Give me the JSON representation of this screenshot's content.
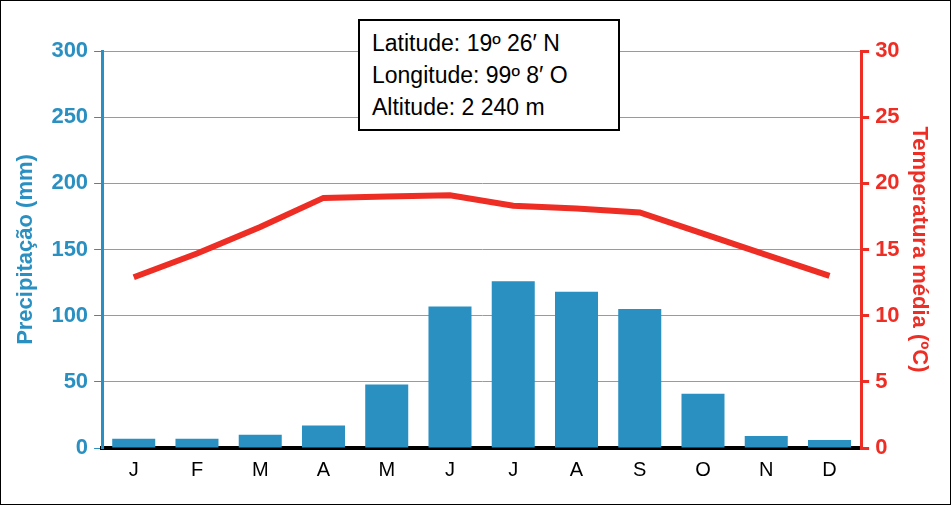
{
  "chart_data": {
    "type": "bar",
    "annotations": [
      "Latitude: 19º 26′ N",
      "Longitude: 99º 8′ O",
      "Altitude: 2 240 m"
    ],
    "categories": [
      "J",
      "F",
      "M",
      "A",
      "M",
      "J",
      "J",
      "A",
      "S",
      "O",
      "N",
      "D"
    ],
    "series": [
      {
        "type": "bar",
        "color": "#2a8fc1",
        "values": [
          7,
          7,
          10,
          17,
          48,
          107,
          126,
          118,
          105,
          41,
          9,
          6
        ]
      },
      {
        "type": "line",
        "color": "#ee2d24",
        "axis": "y2",
        "values": [
          12.9,
          14.7,
          16.7,
          18.9,
          19.0,
          19.1,
          18.3,
          18.1,
          17.8,
          16.2,
          14.6,
          13.0
        ]
      }
    ],
    "y_label": "Precipitação (mm)",
    "y2_label": "Temperatura média (ºC)",
    "ylim": [
      0,
      300
    ],
    "yticks": [
      0,
      50,
      100,
      150,
      200,
      250,
      300
    ],
    "y2lim": [
      0,
      30
    ],
    "y2ticks": [
      0,
      5,
      10,
      15,
      20,
      25,
      30
    ],
    "grid": true
  }
}
